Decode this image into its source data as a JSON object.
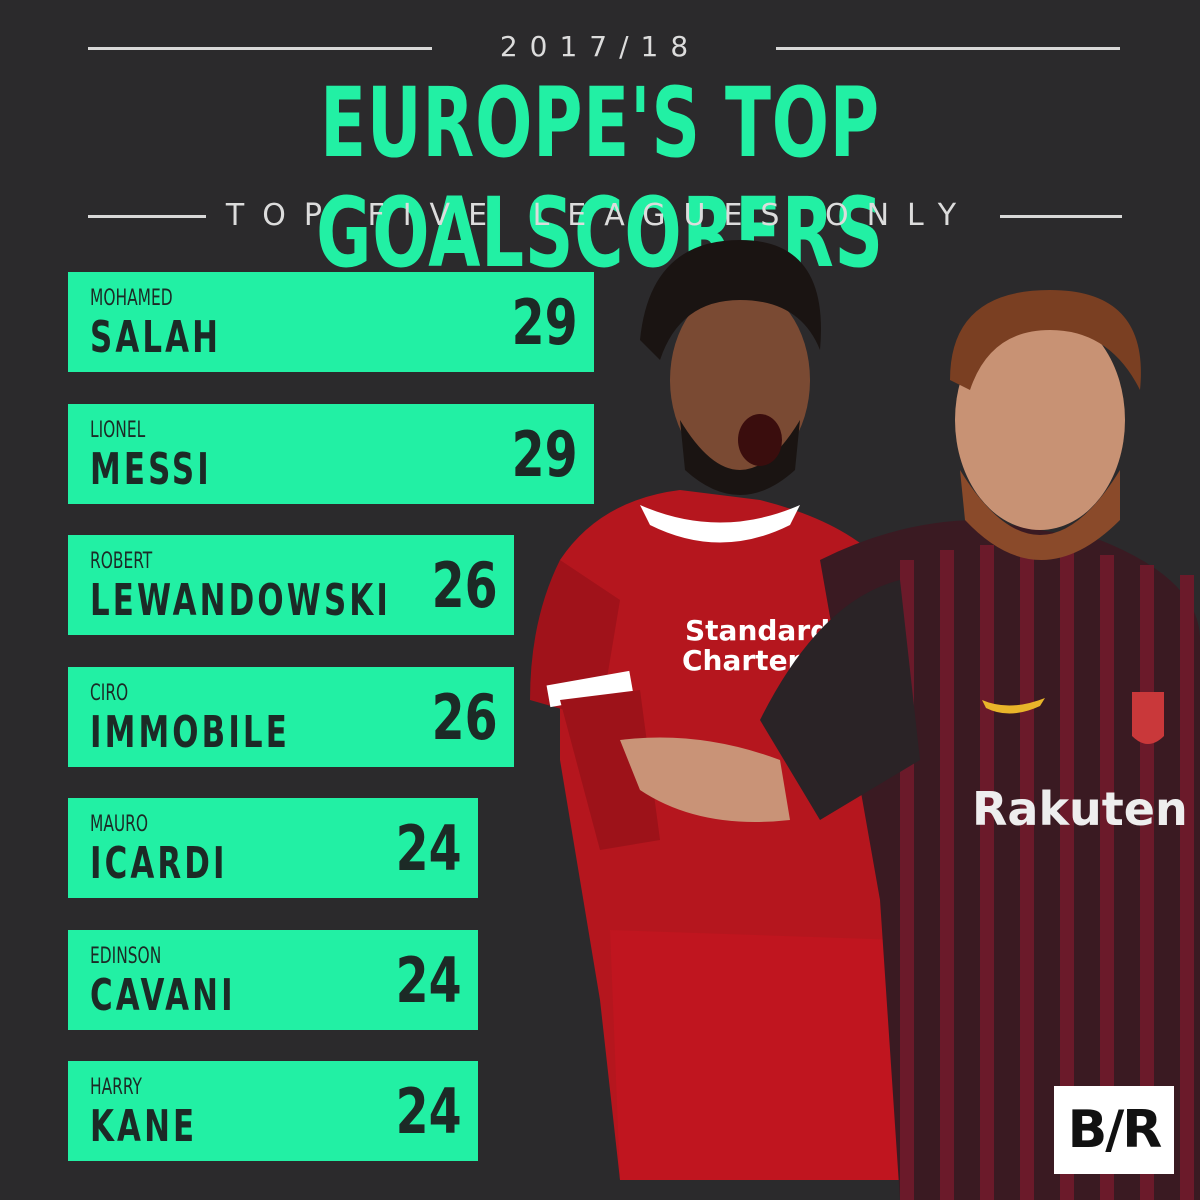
{
  "header": {
    "season": "2017/18",
    "title": "EUROPE'S TOP GOALSCORERS",
    "subtitle": "TOP FIVE LEAGUES ONLY"
  },
  "colors": {
    "accent": "#22f0a4",
    "background": "#2b2a2c",
    "bar_text": "#1c2a26"
  },
  "chart_data": {
    "type": "bar",
    "orientation": "horizontal",
    "title": "EUROPE'S TOP GOALSCORERS",
    "subtitle": "TOP FIVE LEAGUES ONLY",
    "categories": [
      {
        "first": "MOHAMED",
        "last": "SALAH"
      },
      {
        "first": "LIONEL",
        "last": "MESSI"
      },
      {
        "first": "ROBERT",
        "last": "LEWANDOWSKI"
      },
      {
        "first": "CIRO",
        "last": "IMMOBILE"
      },
      {
        "first": "MAURO",
        "last": "ICARDI"
      },
      {
        "first": "EDINSON",
        "last": "CAVANI"
      },
      {
        "first": "HARRY",
        "last": "KANE"
      }
    ],
    "values": [
      29,
      29,
      26,
      26,
      24,
      24,
      24
    ],
    "xlim": [
      0,
      29
    ],
    "grid": false,
    "legend": "none"
  },
  "logo": {
    "text": "B/R"
  }
}
